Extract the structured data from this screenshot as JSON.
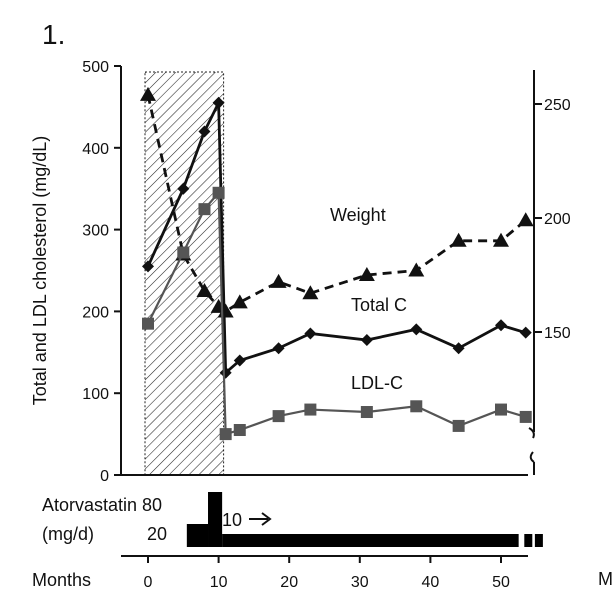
{
  "panel_label": "1.",
  "cutoff_letter": "M",
  "colors": {
    "total_c": "#111111",
    "ldl_c": "#555555",
    "weight": "#111111",
    "axis": "#111111"
  },
  "chart_data": {
    "type": "line",
    "x_axis": {
      "label": "Months",
      "range": [
        0,
        55
      ],
      "ticks": [
        0,
        10,
        20,
        30,
        40,
        50
      ]
    },
    "y_left": {
      "label": "Total and LDL cholesterol (mg/dL)",
      "range": [
        0,
        500
      ],
      "ticks": [
        0,
        100,
        200,
        300,
        400,
        500
      ]
    },
    "y_right": {
      "label": "",
      "range": [
        110,
        260
      ],
      "ticks": [
        150,
        200,
        250
      ],
      "broken_axis": true
    },
    "shaded_region": {
      "x_start": 0,
      "x_end": 10,
      "pattern": "diagonal-hatch"
    },
    "series": [
      {
        "name": "Weight",
        "axis": "right",
        "line": "dashed",
        "marker": "triangle",
        "x": [
          0,
          5,
          8,
          10,
          11,
          13,
          18.5,
          23,
          31,
          38,
          44,
          50,
          53.5
        ],
        "y": [
          254,
          184,
          168,
          161,
          159,
          163,
          172,
          167,
          175,
          177,
          190,
          190,
          199
        ]
      },
      {
        "name": "Total C",
        "axis": "left",
        "line": "solid",
        "marker": "diamond",
        "x": [
          0,
          5,
          8,
          10,
          11,
          13,
          18.5,
          23,
          31,
          38,
          44,
          50,
          53.5
        ],
        "y": [
          255,
          350,
          420,
          455,
          125,
          140,
          155,
          173,
          165,
          178,
          155,
          183,
          174
        ]
      },
      {
        "name": "LDL-C",
        "axis": "left",
        "line": "solid",
        "marker": "square",
        "x": [
          0,
          5,
          8,
          10,
          11,
          13,
          18.5,
          23,
          31,
          38,
          44,
          50,
          53.5
        ],
        "y": [
          185,
          272,
          325,
          345,
          50,
          55,
          72,
          80,
          77,
          84,
          60,
          80,
          71
        ]
      }
    ],
    "dose_bar": {
      "label": "Atorvastatin",
      "unit_label": "(mg/d)",
      "dose_high_label": "80",
      "dose_low_label": "20",
      "note": "10",
      "segments": [
        {
          "dose": 20,
          "x_start": 5.5,
          "x_end": 8.5
        },
        {
          "dose": 80,
          "x_start": 8.5,
          "x_end": 10.5
        },
        {
          "dose": 10,
          "x_start": 10.5,
          "x_end": 52.5
        }
      ],
      "continues_after": true
    }
  }
}
